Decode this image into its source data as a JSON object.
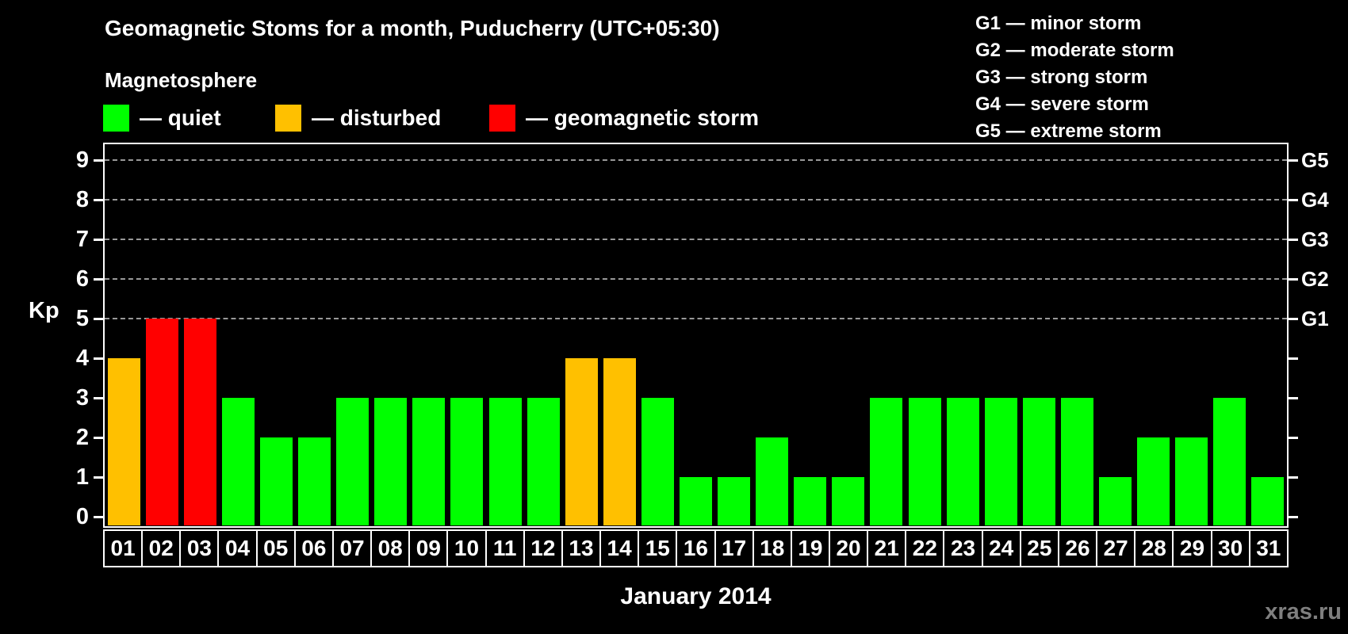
{
  "header": {
    "title": "Geomagnetic Stoms for a month, Puducherry (UTC+05:30)",
    "subtitle": "Magnetosphere",
    "legend": [
      {
        "key": "quiet",
        "label": "— quiet",
        "color": "#00FF00"
      },
      {
        "key": "disturbed",
        "label": "— disturbed",
        "color": "#FFC000"
      },
      {
        "key": "storm",
        "label": "— geomagnetic storm",
        "color": "#FF0000"
      }
    ],
    "g_legend": [
      "G1 — minor storm",
      "G2 — moderate storm",
      "G3 — strong storm",
      "G4 — severe storm",
      "G5 — extreme storm"
    ]
  },
  "chart_data": {
    "type": "bar",
    "title": "Geomagnetic Stoms for a month, Puducherry (UTC+05:30)",
    "categories": [
      "01",
      "02",
      "03",
      "04",
      "05",
      "06",
      "07",
      "08",
      "09",
      "10",
      "11",
      "12",
      "13",
      "14",
      "15",
      "16",
      "17",
      "18",
      "19",
      "20",
      "21",
      "22",
      "23",
      "24",
      "25",
      "26",
      "27",
      "28",
      "29",
      "30",
      "31"
    ],
    "values": [
      4,
      5,
      5,
      3,
      2,
      2,
      3,
      3,
      3,
      3,
      3,
      3,
      4,
      4,
      3,
      1,
      1,
      2,
      1,
      1,
      3,
      3,
      3,
      3,
      3,
      3,
      1,
      2,
      2,
      3,
      1
    ],
    "statuses": [
      "disturbed",
      "storm",
      "storm",
      "quiet",
      "quiet",
      "quiet",
      "quiet",
      "quiet",
      "quiet",
      "quiet",
      "quiet",
      "quiet",
      "disturbed",
      "disturbed",
      "quiet",
      "quiet",
      "quiet",
      "quiet",
      "quiet",
      "quiet",
      "quiet",
      "quiet",
      "quiet",
      "quiet",
      "quiet",
      "quiet",
      "quiet",
      "quiet",
      "quiet",
      "quiet",
      "quiet"
    ],
    "status_colors": {
      "quiet": "#00FF00",
      "disturbed": "#FFC000",
      "storm": "#FF0000"
    },
    "xlabel": "January 2014",
    "ylabel": "Kp",
    "ylim": [
      0,
      9
    ],
    "yticks": [
      0,
      1,
      2,
      3,
      4,
      5,
      6,
      7,
      8,
      9
    ],
    "gridlines": [
      5,
      6,
      7,
      8,
      9
    ],
    "right_axis_labels": {
      "5": "G1",
      "6": "G2",
      "7": "G3",
      "8": "G4",
      "9": "G5"
    },
    "grid": "horizontal dashed lines at storm levels only",
    "legend_position": "top-left and top-right"
  },
  "footer": {
    "watermark": "xras.ru"
  }
}
